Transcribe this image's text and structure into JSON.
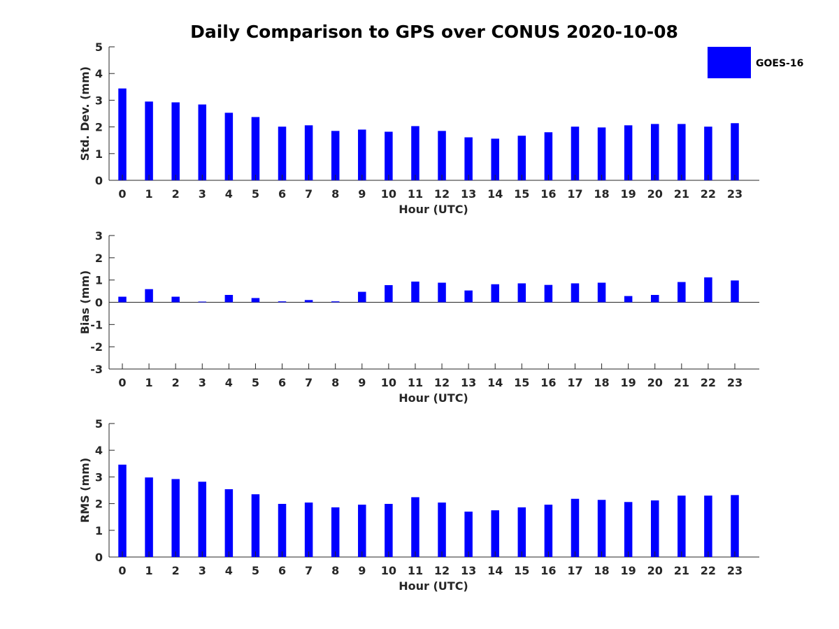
{
  "chart_data": {
    "type": "bar",
    "title": "Daily Comparison to GPS over CONUS 2020-10-08",
    "legend": {
      "label": "GOES-16",
      "color": "#0000ff",
      "placement": "top-right"
    },
    "bar_color": "#0000ff",
    "categories": [
      "0",
      "1",
      "2",
      "3",
      "4",
      "5",
      "6",
      "7",
      "8",
      "9",
      "10",
      "11",
      "12",
      "13",
      "14",
      "15",
      "16",
      "17",
      "18",
      "19",
      "20",
      "21",
      "22",
      "23"
    ],
    "panels": [
      {
        "id": "stddev",
        "ylabel": "Std. Dev. (mm)",
        "xlabel": "Hour (UTC)",
        "ylim": [
          0,
          5
        ],
        "yticks": [
          "0",
          "1",
          "2",
          "3",
          "4",
          "5"
        ],
        "series": [
          {
            "name": "GOES-16",
            "values": [
              3.44,
              2.95,
              2.92,
              2.84,
              2.53,
              2.37,
              2.01,
              2.06,
              1.85,
              1.9,
              1.82,
              2.03,
              1.85,
              1.61,
              1.56,
              1.67,
              1.8,
              2.01,
              1.98,
              2.06,
              2.11,
              2.11,
              2.01,
              2.14
            ]
          }
        ]
      },
      {
        "id": "bias",
        "ylabel": "Bias (mm)",
        "xlabel": "Hour (UTC)",
        "ylim": [
          -3,
          3
        ],
        "yticks": [
          "-3",
          "-2",
          "-1",
          "0",
          "1",
          "2",
          "3"
        ],
        "series": [
          {
            "name": "GOES-16",
            "values": [
              0.25,
              0.59,
              0.25,
              0.03,
              0.33,
              0.19,
              0.04,
              0.1,
              0.04,
              0.47,
              0.77,
              0.93,
              0.88,
              0.53,
              0.81,
              0.85,
              0.78,
              0.85,
              0.88,
              0.28,
              0.33,
              0.91,
              1.12,
              0.98
            ]
          }
        ]
      },
      {
        "id": "rms",
        "ylabel": "RMS (mm)",
        "xlabel": "Hour (UTC)",
        "ylim": [
          0,
          5
        ],
        "yticks": [
          "0",
          "1",
          "2",
          "3",
          "4",
          "5"
        ],
        "series": [
          {
            "name": "GOES-16",
            "values": [
              3.46,
              2.98,
              2.92,
              2.82,
              2.54,
              2.35,
              1.99,
              2.04,
              1.86,
              1.96,
              1.99,
              2.24,
              2.04,
              1.7,
              1.75,
              1.86,
              1.96,
              2.18,
              2.14,
              2.06,
              2.12,
              2.3,
              2.3,
              2.32
            ]
          }
        ]
      }
    ]
  }
}
